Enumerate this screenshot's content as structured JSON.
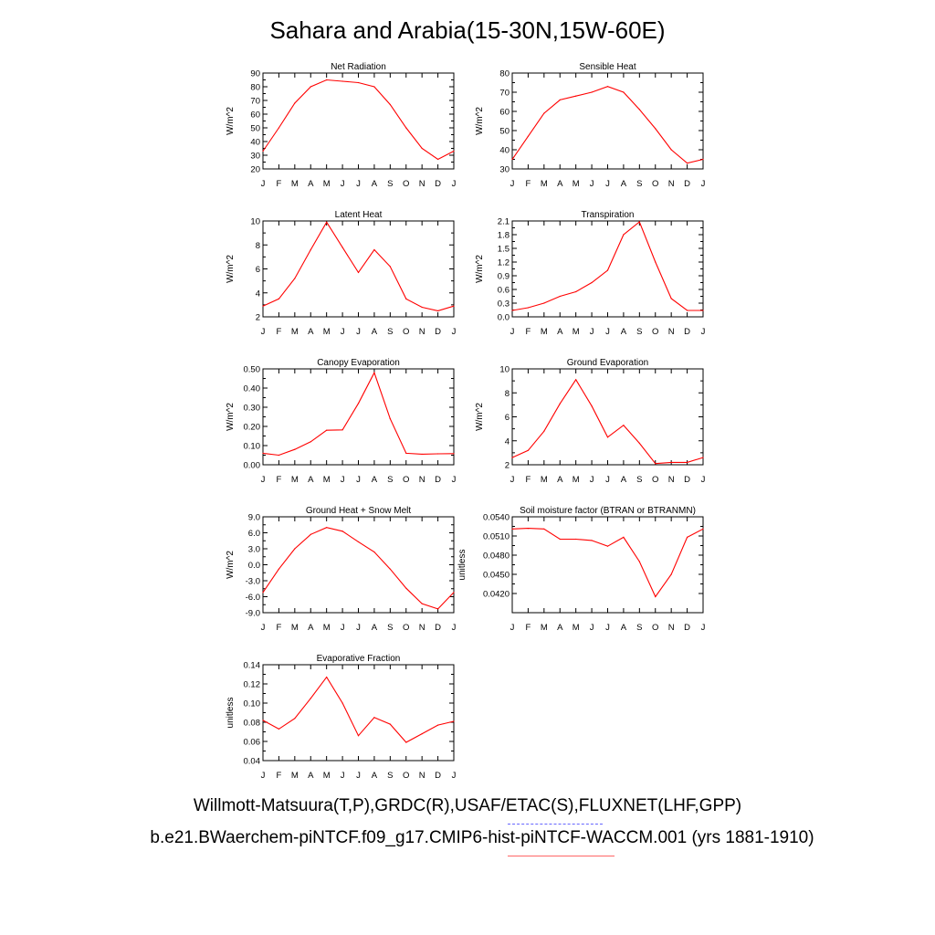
{
  "page": {
    "title": "Sahara and Arabia(15-30N,15W-60E)",
    "legend_line_1": "Willmott-Matsuura(T,P),GRDC(R),USAF/ETAC(S),FLUXNET(LHF,GPP)",
    "legend_line_2": "b.e21.BWaerchem-piNTCF.f09_g17.CMIP6-hist-piNTCF-WACCM.001 (yrs 1881-1910)"
  },
  "colors": {
    "series": "#ff0000",
    "axis": "#000000"
  },
  "chart_data": [
    {
      "type": "line",
      "title": "Net Radiation",
      "ylabel": "W/m^2",
      "categories": [
        "J",
        "F",
        "M",
        "A",
        "M",
        "J",
        "J",
        "A",
        "S",
        "O",
        "N",
        "D",
        "J"
      ],
      "values": [
        33,
        50,
        68,
        80,
        85,
        84,
        83,
        80,
        67,
        50,
        35,
        27,
        33
      ],
      "ylim": [
        20,
        90
      ],
      "yticks": [
        "20",
        "30",
        "40",
        "50",
        "60",
        "70",
        "80",
        "90"
      ],
      "grid": false
    },
    {
      "type": "line",
      "title": "Sensible Heat",
      "ylabel": "W/m^2",
      "categories": [
        "J",
        "F",
        "M",
        "A",
        "M",
        "J",
        "J",
        "A",
        "S",
        "O",
        "N",
        "D",
        "J"
      ],
      "values": [
        35,
        47,
        59,
        66,
        68,
        70,
        73,
        70,
        61,
        51,
        40,
        33,
        35
      ],
      "ylim": [
        30,
        80
      ],
      "yticks": [
        "30",
        "40",
        "50",
        "60",
        "70",
        "80"
      ],
      "grid": false
    },
    {
      "type": "line",
      "title": "Latent Heat",
      "ylabel": "W/m^2",
      "categories": [
        "J",
        "F",
        "M",
        "A",
        "M",
        "J",
        "J",
        "A",
        "S",
        "O",
        "N",
        "D",
        "J"
      ],
      "values": [
        2.9,
        3.5,
        5.2,
        7.6,
        9.9,
        7.8,
        5.7,
        7.6,
        6.2,
        3.5,
        2.8,
        2.5,
        2.9
      ],
      "ylim": [
        2,
        10
      ],
      "yticks": [
        "2",
        "4",
        "6",
        "8",
        "10"
      ],
      "grid": false
    },
    {
      "type": "line",
      "title": "Transpiration",
      "ylabel": "W/m^2",
      "categories": [
        "J",
        "F",
        "M",
        "A",
        "M",
        "J",
        "J",
        "A",
        "S",
        "O",
        "N",
        "D",
        "J"
      ],
      "values": [
        0.14,
        0.2,
        0.3,
        0.45,
        0.55,
        0.75,
        1.02,
        1.8,
        2.08,
        1.2,
        0.4,
        0.14,
        0.14
      ],
      "ylim": [
        0,
        2.1
      ],
      "yticks": [
        "0.0",
        "0.3",
        "0.6",
        "0.9",
        "1.2",
        "1.5",
        "1.8",
        "2.1"
      ],
      "grid": false
    },
    {
      "type": "line",
      "title": "Canopy Evaporation",
      "ylabel": "W/m^2",
      "categories": [
        "J",
        "F",
        "M",
        "A",
        "M",
        "J",
        "J",
        "A",
        "S",
        "O",
        "N",
        "D",
        "J"
      ],
      "values": [
        0.06,
        0.05,
        0.08,
        0.12,
        0.18,
        0.182,
        0.32,
        0.48,
        0.24,
        0.06,
        0.055,
        0.057,
        0.058
      ],
      "ylim": [
        0,
        0.5
      ],
      "yticks": [
        "0.00",
        "0.10",
        "0.20",
        "0.30",
        "0.40",
        "0.50"
      ],
      "grid": false
    },
    {
      "type": "line",
      "title": "Ground Evaporation",
      "ylabel": "W/m^2",
      "categories": [
        "J",
        "F",
        "M",
        "A",
        "M",
        "J",
        "J",
        "A",
        "S",
        "O",
        "N",
        "D",
        "J"
      ],
      "values": [
        2.6,
        3.2,
        4.8,
        7.1,
        9.1,
        6.9,
        4.3,
        5.3,
        3.8,
        2.1,
        2.2,
        2.2,
        2.6
      ],
      "ylim": [
        2,
        10
      ],
      "yticks": [
        "2",
        "4",
        "6",
        "8",
        "10"
      ],
      "grid": false
    },
    {
      "type": "line",
      "title": "Ground Heat + Snow Melt",
      "ylabel": "W/m^2",
      "categories": [
        "J",
        "F",
        "M",
        "A",
        "M",
        "J",
        "J",
        "A",
        "S",
        "O",
        "N",
        "D",
        "J"
      ],
      "values": [
        -5.2,
        -0.8,
        3.0,
        5.7,
        7.0,
        6.3,
        4.3,
        2.4,
        -0.8,
        -4.4,
        -7.3,
        -8.3,
        -5.2
      ],
      "ylim": [
        -9,
        9
      ],
      "yticks": [
        "-9.0",
        "-6.0",
        "-3.0",
        "0.0",
        "3.0",
        "6.0",
        "9.0"
      ],
      "grid": false
    },
    {
      "type": "line",
      "title": "Soil moisture factor (BTRAN or BTRANMN)",
      "ylabel": "unitless",
      "categories": [
        "J",
        "F",
        "M",
        "A",
        "M",
        "J",
        "J",
        "A",
        "S",
        "O",
        "N",
        "D",
        "J"
      ],
      "values": [
        0.0521,
        0.0522,
        0.0521,
        0.0505,
        0.0505,
        0.0503,
        0.0494,
        0.0508,
        0.047,
        0.0415,
        0.045,
        0.0508,
        0.0521
      ],
      "ylim": [
        0.039,
        0.054
      ],
      "yticks": [
        "0.0420",
        "0.0450",
        "0.0480",
        "0.0510",
        "0.0540"
      ],
      "ytick_values": [
        0.042,
        0.045,
        0.048,
        0.051,
        0.054
      ],
      "grid": false
    },
    {
      "type": "line",
      "title": "Evaporative Fraction",
      "ylabel": "unitless",
      "categories": [
        "J",
        "F",
        "M",
        "A",
        "M",
        "J",
        "J",
        "A",
        "S",
        "O",
        "N",
        "D",
        "J"
      ],
      "values": [
        0.082,
        0.073,
        0.084,
        0.105,
        0.127,
        0.1,
        0.066,
        0.085,
        0.078,
        0.059,
        0.068,
        0.077,
        0.081
      ],
      "ylim": [
        0.04,
        0.14
      ],
      "yticks": [
        "0.04",
        "0.06",
        "0.08",
        "0.10",
        "0.12",
        "0.14"
      ],
      "grid": false
    }
  ]
}
